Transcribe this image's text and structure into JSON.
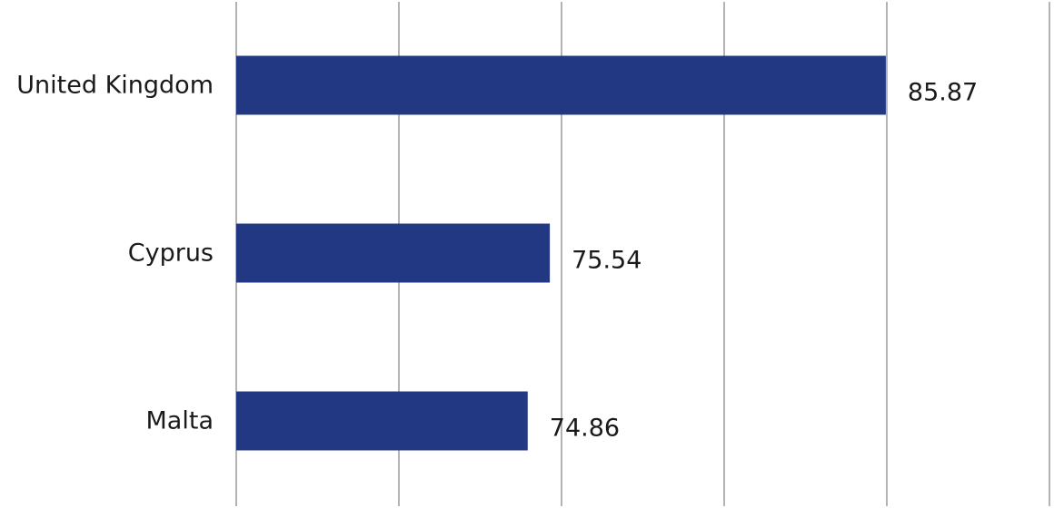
{
  "chart_data": {
    "type": "bar",
    "orientation": "horizontal",
    "categories": [
      "United Kingdom",
      "Cyprus",
      "Malta"
    ],
    "values": [
      85.87,
      75.54,
      74.86
    ],
    "value_labels": [
      "85.87",
      "75.54",
      "74.86"
    ],
    "title": "",
    "xlabel": "",
    "ylabel": "",
    "xlim": [
      65.9,
      90.9
    ],
    "x_gridlines": [
      65.9,
      70.9,
      75.9,
      80.9,
      85.9,
      90.9
    ],
    "grid": true,
    "legend": "none",
    "colors": {
      "bar": "#223882",
      "grid": "#9a9a9a",
      "text": "#1a1a1a"
    }
  }
}
